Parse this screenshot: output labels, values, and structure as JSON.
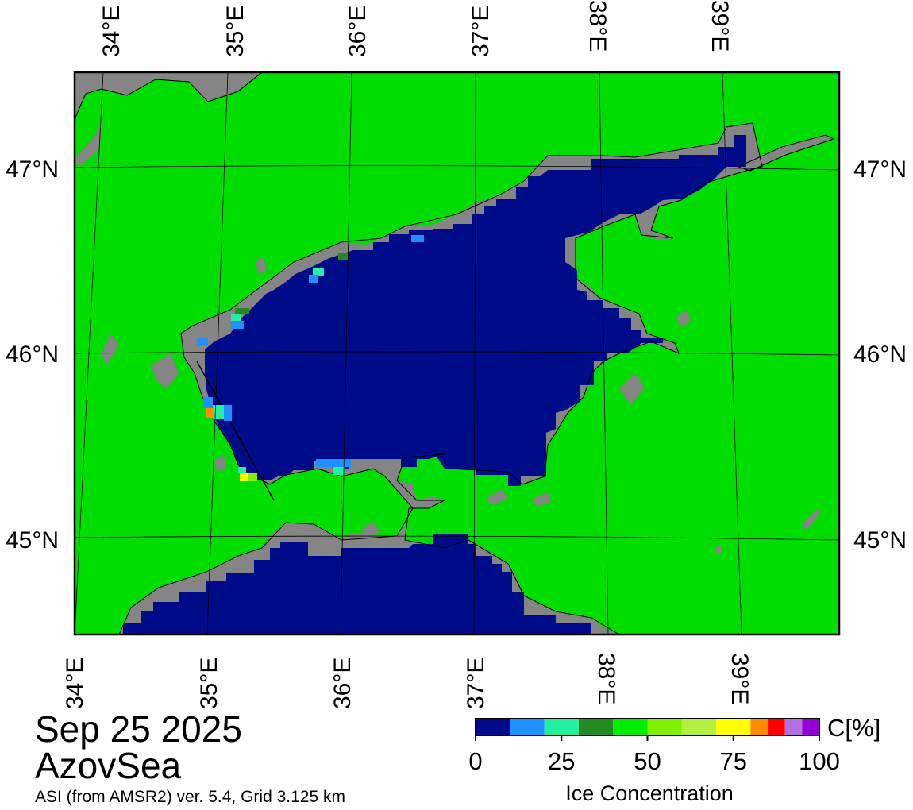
{
  "map": {
    "date": "Sep 25 2025",
    "region": "AzovSea",
    "source": "ASI (from AMSR2) ver. 5.4,  Grid 3.125 km",
    "colors": {
      "land": "#00dd00",
      "coast_mask": "#858585",
      "open_water": "#000b8a",
      "frame": "#000000"
    },
    "top_lon_labels": [
      "34°E",
      "35°E",
      "36°E",
      "37°E",
      "38°E",
      "39°E"
    ],
    "bottom_lon_labels": [
      "34°E",
      "35°E",
      "36°E",
      "37°E",
      "38°E",
      "39°E"
    ],
    "left_lat_labels": [
      "47°N",
      "46°N",
      "45°N"
    ],
    "right_lat_labels": [
      "47°N",
      "46°N",
      "45°N"
    ]
  },
  "colorbar": {
    "title": "Ice Concentration",
    "unit": "C[%]",
    "tick_labels": [
      "0",
      "25",
      "50",
      "75",
      "100"
    ],
    "bins": [
      {
        "from": 0,
        "to": 10,
        "color": "#000b8a"
      },
      {
        "from": 10,
        "to": 20,
        "color": "#1e90ff"
      },
      {
        "from": 20,
        "to": 30,
        "color": "#22f0a0"
      },
      {
        "from": 30,
        "to": 40,
        "color": "#228b22"
      },
      {
        "from": 40,
        "to": 50,
        "color": "#00ee00"
      },
      {
        "from": 50,
        "to": 60,
        "color": "#7ff000"
      },
      {
        "from": 60,
        "to": 70,
        "color": "#b4f040"
      },
      {
        "from": 70,
        "to": 80,
        "color": "#ffff00"
      },
      {
        "from": 80,
        "to": 85,
        "color": "#ff8c00"
      },
      {
        "from": 85,
        "to": 90,
        "color": "#ff0000"
      },
      {
        "from": 90,
        "to": 95,
        "color": "#b070e0"
      },
      {
        "from": 95,
        "to": 100,
        "color": "#9400d3"
      }
    ]
  }
}
